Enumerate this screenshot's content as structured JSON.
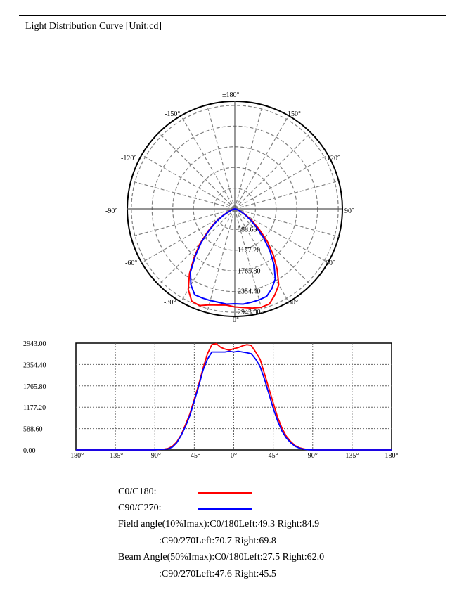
{
  "page": {
    "title": "Light Distribution Curve [Unit:cd]"
  },
  "colors": {
    "c0_c180": "#ff0000",
    "c90_c270": "#0000ff",
    "grid": "#808080"
  },
  "chart_data": [
    {
      "type": "polar",
      "angle_labels": [
        "±180°",
        "150°",
        "-150°",
        "120°",
        "-120°",
        "90°",
        "-90°",
        "60°",
        "-60°",
        "30°",
        "-30°",
        "0°"
      ],
      "radial_labels": [
        "588.60",
        "1177.20",
        "1765.80",
        "2354.40",
        "2943.00"
      ],
      "rmax": 2943.0,
      "grid": true,
      "series": [
        {
          "name": "C0/C180",
          "color": "#ff0000",
          "angles": [
            -90,
            -85,
            -80,
            -75,
            -70,
            -65,
            -60,
            -55,
            -50,
            -45,
            -40,
            -35,
            -30,
            -25,
            -20,
            -15,
            -10,
            -5,
            0,
            5,
            10,
            15,
            20,
            25,
            30,
            35,
            40,
            45,
            50,
            55,
            60,
            65,
            70,
            75,
            80,
            85,
            90
          ],
          "values": [
            0,
            15,
            20,
            40,
            100,
            220,
            420,
            700,
            1000,
            1400,
            1800,
            2250,
            2650,
            2900,
            2930,
            2830,
            2780,
            2750,
            2790,
            2820,
            2870,
            2900,
            2880,
            2700,
            2500,
            2100,
            1700,
            1300,
            900,
            600,
            380,
            230,
            120,
            60,
            30,
            10,
            0
          ]
        },
        {
          "name": "C90/C270",
          "color": "#0000ff",
          "angles": [
            -90,
            -85,
            -80,
            -75,
            -70,
            -65,
            -60,
            -55,
            -50,
            -45,
            -40,
            -35,
            -30,
            -25,
            -20,
            -15,
            -10,
            -5,
            0,
            5,
            10,
            15,
            20,
            25,
            30,
            35,
            40,
            45,
            50,
            55,
            60,
            65,
            70,
            75,
            80,
            85,
            90
          ],
          "values": [
            0,
            15,
            20,
            30,
            80,
            200,
            400,
            650,
            950,
            1350,
            1750,
            2200,
            2500,
            2700,
            2700,
            2700,
            2700,
            2720,
            2700,
            2720,
            2700,
            2680,
            2650,
            2500,
            2300,
            1950,
            1550,
            1150,
            800,
            520,
            330,
            200,
            100,
            50,
            20,
            5,
            0
          ]
        }
      ]
    },
    {
      "type": "line",
      "xlim": [
        -180,
        180
      ],
      "ylim": [
        0,
        2943.0
      ],
      "x_ticks": [
        "-180°",
        "-135°",
        "-90°",
        "-45°",
        "0°",
        "45°",
        "90°",
        "135°",
        "180°"
      ],
      "y_ticks": [
        "0.00",
        "588.60",
        "1177.20",
        "1765.80",
        "2354.40",
        "2943.00"
      ],
      "grid": true,
      "series_ref": "same as polar series (values outside ±90° are 0)"
    }
  ],
  "legend": [
    {
      "label": "C0/C180:",
      "color": "#ff0000"
    },
    {
      "label": "C90/C270:",
      "color": "#0000ff"
    }
  ],
  "info": {
    "field_c0": "Field angle(10%Imax):C0/180Left:49.3 Right:84.9",
    "field_c90": ":C90/270Left:70.7 Right:69.8",
    "beam_c0": "Beam Angle(50%Imax):C0/180Left:27.5 Right:62.0",
    "beam_c90": ":C90/270Left:47.6 Right:45.5"
  }
}
